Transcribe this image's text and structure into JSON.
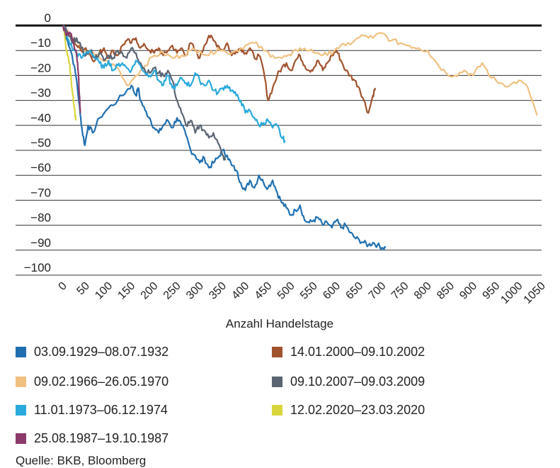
{
  "chart_data": {
    "type": "line",
    "title": "",
    "xlabel": "Anzahl Handelstage",
    "ylabel": "",
    "xlim": [
      0,
      1050
    ],
    "ylim": [
      -100,
      0
    ],
    "x_ticks": [
      0,
      50,
      100,
      150,
      200,
      250,
      300,
      350,
      400,
      450,
      500,
      550,
      600,
      650,
      700,
      750,
      800,
      850,
      900,
      950,
      1000,
      1050
    ],
    "y_ticks": [
      0,
      -10,
      -20,
      -30,
      -40,
      -50,
      -60,
      -70,
      -80,
      -90,
      -100
    ],
    "x_tick_labels": [
      "0",
      "50",
      "100",
      "150",
      "200",
      "250",
      "300",
      "350",
      "400",
      "450",
      "500",
      "550",
      "600",
      "650",
      "700",
      "750",
      "800",
      "850",
      "900",
      "950",
      "1000",
      "1050"
    ],
    "y_tick_labels": [
      "0",
      "−10",
      "−20",
      "−30",
      "−40",
      "−50",
      "−60",
      "−70",
      "−80",
      "−90",
      "−100"
    ],
    "grid": "horizontal",
    "legend_position": "bottom",
    "series": [
      {
        "name": "03.09.1929–08.07.1932",
        "color": "#1f6fb0",
        "x": [
          0,
          10,
          20,
          30,
          38,
          42,
          48,
          55,
          65,
          80,
          100,
          120,
          140,
          150,
          160,
          165,
          170,
          180,
          190,
          200,
          210,
          220,
          230,
          240,
          250,
          260,
          270,
          280,
          290,
          300,
          310,
          320,
          330,
          340,
          350,
          360,
          370,
          380,
          390,
          400,
          410,
          420,
          430,
          440,
          450,
          460,
          470,
          480,
          490,
          500,
          510,
          520,
          530,
          540,
          550,
          560,
          570,
          580,
          590,
          600,
          610,
          620,
          630,
          640,
          650,
          660,
          670,
          680,
          690,
          700,
          708
        ],
        "y": [
          0,
          -6,
          -12,
          -22,
          -36,
          -42,
          -48,
          -40,
          -43,
          -37,
          -33,
          -30,
          -26,
          -24,
          -28,
          -25,
          -30,
          -34,
          -37,
          -41,
          -43,
          -40,
          -38,
          -41,
          -37,
          -40,
          -44,
          -50,
          -52,
          -55,
          -53,
          -57,
          -55,
          -53,
          -50,
          -52,
          -56,
          -58,
          -63,
          -66,
          -62,
          -65,
          -60,
          -63,
          -65,
          -62,
          -67,
          -71,
          -73,
          -76,
          -74,
          -72,
          -78,
          -79,
          -78,
          -77,
          -80,
          -79,
          -81,
          -78,
          -81,
          -80,
          -83,
          -85,
          -86,
          -87,
          -88,
          -87,
          -88,
          -89,
          -89
        ]
      },
      {
        "name": "14.01.2000–09.10.2002",
        "color": "#a0522d",
        "x": [
          0,
          10,
          20,
          30,
          40,
          50,
          60,
          70,
          80,
          90,
          100,
          110,
          120,
          130,
          140,
          150,
          160,
          170,
          180,
          190,
          200,
          210,
          220,
          230,
          240,
          250,
          260,
          270,
          280,
          290,
          300,
          310,
          320,
          330,
          340,
          350,
          360,
          370,
          380,
          390,
          400,
          410,
          420,
          430,
          440,
          450,
          460,
          470,
          480,
          490,
          500,
          510,
          520,
          530,
          540,
          550,
          560,
          570,
          580,
          590,
          600,
          610,
          620,
          630,
          640,
          650,
          660,
          670,
          680,
          685
        ],
        "y": [
          0,
          -3,
          -5,
          -8,
          -10,
          -9,
          -12,
          -14,
          -11,
          -9,
          -13,
          -10,
          -12,
          -8,
          -6,
          -7,
          -5,
          -9,
          -8,
          -10,
          -11,
          -9,
          -12,
          -10,
          -8,
          -11,
          -9,
          -12,
          -7,
          -10,
          -13,
          -8,
          -4,
          -6,
          -8,
          -10,
          -7,
          -12,
          -10,
          -9,
          -11,
          -9,
          -13,
          -12,
          -18,
          -30,
          -25,
          -20,
          -17,
          -15,
          -18,
          -14,
          -12,
          -16,
          -18,
          -17,
          -14,
          -18,
          -15,
          -12,
          -10,
          -14,
          -18,
          -20,
          -22,
          -25,
          -30,
          -35,
          -28,
          -25
        ]
      },
      {
        "name": "09.02.1966–26.05.1970",
        "color": "#f0c080",
        "x": [
          0,
          20,
          40,
          60,
          80,
          100,
          120,
          140,
          160,
          180,
          200,
          220,
          240,
          260,
          280,
          300,
          320,
          340,
          360,
          380,
          400,
          420,
          440,
          460,
          480,
          500,
          520,
          540,
          560,
          580,
          600,
          620,
          640,
          660,
          680,
          700,
          720,
          740,
          760,
          780,
          800,
          820,
          840,
          860,
          880,
          900,
          920,
          940,
          960,
          980,
          1000,
          1020,
          1040
        ],
        "y": [
          0,
          -5,
          -9,
          -11,
          -13,
          -15,
          -17,
          -24,
          -20,
          -16,
          -12,
          -11,
          -13,
          -12,
          -10,
          -10,
          -12,
          -9,
          -11,
          -10,
          -8,
          -7,
          -10,
          -12,
          -13,
          -12,
          -9,
          -10,
          -11,
          -12,
          -9,
          -8,
          -6,
          -4,
          -5,
          -3,
          -6,
          -7,
          -8,
          -9,
          -10,
          -15,
          -19,
          -20,
          -18,
          -20,
          -15,
          -21,
          -23,
          -24,
          -22,
          -25,
          -36
        ]
      },
      {
        "name": "09.10.2007–09.03.2009",
        "color": "#5a6472",
        "x": [
          0,
          10,
          20,
          30,
          40,
          50,
          60,
          70,
          80,
          90,
          100,
          110,
          120,
          130,
          140,
          150,
          160,
          170,
          180,
          190,
          200,
          210,
          220,
          230,
          240,
          250,
          260,
          270,
          280,
          290,
          300,
          310,
          320,
          330,
          340,
          350,
          356
        ],
        "y": [
          0,
          -3,
          -7,
          -5,
          -9,
          -12,
          -10,
          -13,
          -11,
          -14,
          -12,
          -13,
          -10,
          -11,
          -13,
          -9,
          -11,
          -15,
          -18,
          -19,
          -17,
          -19,
          -20,
          -18,
          -22,
          -30,
          -35,
          -40,
          -38,
          -43,
          -40,
          -42,
          -45,
          -43,
          -47,
          -52,
          -54
        ]
      },
      {
        "name": "11.01.1973–06.12.1974",
        "color": "#29a9dc",
        "x": [
          0,
          10,
          20,
          30,
          40,
          50,
          60,
          70,
          80,
          90,
          100,
          110,
          120,
          130,
          140,
          150,
          160,
          170,
          180,
          190,
          200,
          210,
          220,
          230,
          240,
          250,
          260,
          270,
          280,
          290,
          300,
          310,
          320,
          330,
          340,
          350,
          360,
          370,
          380,
          390,
          400,
          410,
          420,
          430,
          440,
          450,
          460,
          470,
          480,
          487
        ],
        "y": [
          0,
          -5,
          -9,
          -11,
          -13,
          -11,
          -10,
          -13,
          -15,
          -17,
          -14,
          -18,
          -16,
          -15,
          -17,
          -18,
          -14,
          -16,
          -19,
          -20,
          -18,
          -22,
          -24,
          -20,
          -25,
          -24,
          -21,
          -23,
          -24,
          -19,
          -22,
          -24,
          -22,
          -26,
          -27,
          -25,
          -24,
          -26,
          -28,
          -30,
          -35,
          -34,
          -37,
          -40,
          -39,
          -38,
          -41,
          -40,
          -45,
          -46
        ]
      },
      {
        "name": "12.02.2020–23.03.2020",
        "color": "#d8d63c",
        "x": [
          0,
          5,
          10,
          14,
          18,
          22,
          25,
          28
        ],
        "y": [
          0,
          -6,
          -12,
          -15,
          -22,
          -28,
          -33,
          -38
        ]
      },
      {
        "name": "25.08.1987–19.10.1987",
        "color": "#8b3a6b",
        "x": [
          0,
          8,
          16,
          24,
          30,
          34,
          36,
          38
        ],
        "y": [
          0,
          -4,
          -3,
          -8,
          -12,
          -20,
          -28,
          -35
        ]
      }
    ]
  },
  "legend": {
    "items": [
      {
        "label": "03.09.1929–08.07.1932",
        "color": "#1f6fb0"
      },
      {
        "label": "14.01.2000–09.10.2002",
        "color": "#a0522d"
      },
      {
        "label": "09.02.1966–26.05.1970",
        "color": "#f0c080"
      },
      {
        "label": "09.10.2007–09.03.2009",
        "color": "#5a6472"
      },
      {
        "label": "11.01.1973–06.12.1974",
        "color": "#29a9dc"
      },
      {
        "label": "12.02.2020–23.03.2020",
        "color": "#d8d63c"
      },
      {
        "label": "25.08.1987–19.10.1987",
        "color": "#8b3a6b"
      }
    ]
  },
  "source": "Quelle: BKB, Bloomberg"
}
